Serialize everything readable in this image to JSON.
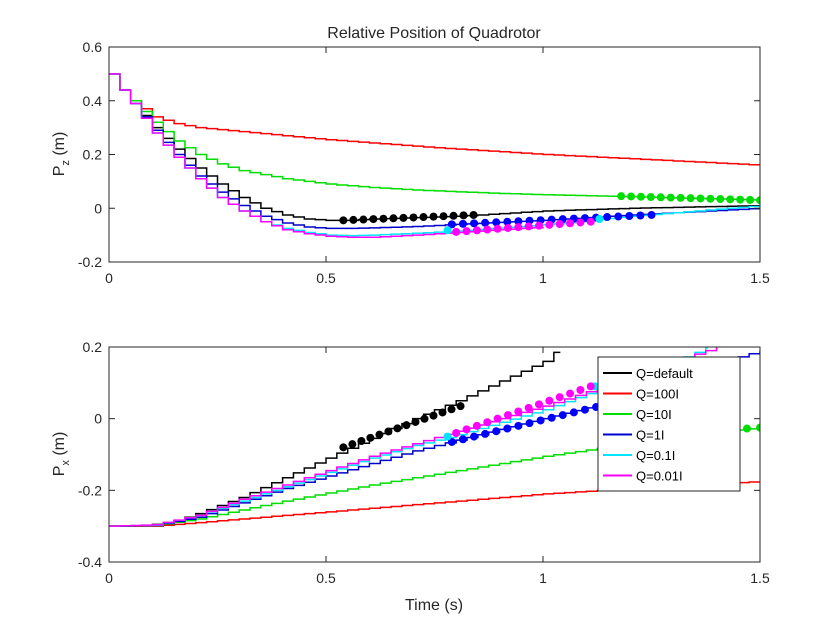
{
  "chart_data": [
    {
      "type": "line",
      "title": "Relative Position of Quadrotor",
      "ylabel_main": "P",
      "ylabel_sub": "z",
      "ylabel_unit": " (m)",
      "xlabel": "",
      "xlim": [
        0,
        1.5
      ],
      "ylim": [
        -0.2,
        0.6
      ],
      "xticks": [
        "0",
        "0.5",
        "1",
        "1.5"
      ],
      "xtick_values": [
        0,
        0.5,
        1,
        1.5
      ],
      "yticks": [
        "-0.2",
        "0",
        "0.2",
        "0.4",
        "0.6"
      ],
      "ytick_values": [
        -0.2,
        0,
        0.2,
        0.4,
        0.6
      ],
      "series": [
        {
          "color": "#000000",
          "x": [
            0,
            0.025,
            0.05,
            0.1,
            0.15,
            0.2,
            0.25,
            0.3,
            0.35,
            0.4,
            0.45,
            0.5,
            0.55,
            0.6,
            0.8,
            1.0,
            1.2,
            1.5
          ],
          "y": [
            0.5,
            0.44,
            0.39,
            0.3,
            0.22,
            0.15,
            0.09,
            0.04,
            0.0,
            -0.025,
            -0.04,
            -0.045,
            -0.045,
            -0.04,
            -0.03,
            -0.01,
            0.0,
            0.01
          ]
        },
        {
          "color": "#ff0000",
          "x": [
            0,
            0.025,
            0.05,
            0.1,
            0.15,
            0.2,
            0.3,
            0.5,
            0.75,
            1.0,
            1.25,
            1.5
          ],
          "y": [
            0.5,
            0.44,
            0.4,
            0.34,
            0.315,
            0.3,
            0.285,
            0.255,
            0.225,
            0.2,
            0.18,
            0.16
          ]
        },
        {
          "color": "#00dd00",
          "x": [
            0,
            0.025,
            0.05,
            0.1,
            0.15,
            0.2,
            0.25,
            0.3,
            0.4,
            0.5,
            0.6,
            0.7,
            0.8,
            0.9,
            1.0,
            1.2,
            1.5
          ],
          "y": [
            0.5,
            0.44,
            0.4,
            0.32,
            0.25,
            0.2,
            0.165,
            0.14,
            0.11,
            0.09,
            0.077,
            0.068,
            0.061,
            0.055,
            0.05,
            0.043,
            0.03
          ]
        },
        {
          "color": "#0000cc",
          "x": [
            0,
            0.025,
            0.05,
            0.1,
            0.15,
            0.2,
            0.25,
            0.3,
            0.35,
            0.4,
            0.45,
            0.5,
            0.55,
            0.6,
            0.7,
            0.8,
            1.0,
            1.2,
            1.5
          ],
          "y": [
            0.5,
            0.44,
            0.39,
            0.29,
            0.2,
            0.12,
            0.06,
            0.01,
            -0.03,
            -0.055,
            -0.07,
            -0.075,
            -0.075,
            -0.073,
            -0.068,
            -0.06,
            -0.045,
            -0.025,
            0.0
          ]
        },
        {
          "color": "#00e5ff",
          "x": [
            0,
            0.025,
            0.05,
            0.1,
            0.15,
            0.2,
            0.25,
            0.3,
            0.35,
            0.4,
            0.45,
            0.5,
            0.55,
            0.6,
            0.7,
            0.8,
            1.0,
            1.2,
            1.5
          ],
          "y": [
            0.5,
            0.44,
            0.39,
            0.28,
            0.19,
            0.11,
            0.04,
            -0.01,
            -0.05,
            -0.075,
            -0.09,
            -0.1,
            -0.102,
            -0.1,
            -0.093,
            -0.085,
            -0.062,
            -0.03,
            0.01
          ]
        },
        {
          "color": "#ff00ff",
          "x": [
            0,
            0.025,
            0.05,
            0.1,
            0.15,
            0.2,
            0.25,
            0.3,
            0.35,
            0.4,
            0.45,
            0.5,
            0.55,
            0.6,
            0.65,
            0.7,
            0.8,
            1.0
          ],
          "y": [
            0.5,
            0.44,
            0.39,
            0.28,
            0.19,
            0.11,
            0.04,
            -0.01,
            -0.05,
            -0.08,
            -0.095,
            -0.104,
            -0.108,
            -0.108,
            -0.104,
            -0.1,
            -0.09,
            -0.07
          ]
        }
      ],
      "markers": [
        {
          "color": "#000000",
          "x0": 0.54,
          "x1": 0.84,
          "n": 14,
          "y0": -0.045,
          "y1": -0.025
        },
        {
          "color": "#00dd00",
          "x0": 1.18,
          "x1": 1.5,
          "n": 15,
          "y0": 0.045,
          "y1": 0.03
        },
        {
          "color": "#0000ff",
          "x0": 0.79,
          "x1": 1.25,
          "n": 19,
          "y0": -0.06,
          "y1": -0.025
        },
        {
          "color": "#00e5ff",
          "x0": 0.78,
          "x1": 1.13,
          "n": 2,
          "y0": -0.082,
          "y1": -0.04
        },
        {
          "color": "#ff00ff",
          "x0": 0.8,
          "x1": 1.11,
          "n": 14,
          "y0": -0.088,
          "y1": -0.05
        }
      ]
    },
    {
      "type": "line",
      "title": "",
      "ylabel_main": "P",
      "ylabel_sub": "x",
      "ylabel_unit": " (m)",
      "xlabel": "Time (s)",
      "xlim": [
        0,
        1.5
      ],
      "ylim": [
        -0.4,
        0.2
      ],
      "xticks": [
        "0",
        "0.5",
        "1",
        "1.5"
      ],
      "xtick_values": [
        0,
        0.5,
        1,
        1.5
      ],
      "yticks": [
        "-0.4",
        "-0.2",
        "0",
        "0.2"
      ],
      "ytick_values": [
        -0.4,
        -0.2,
        0,
        0.2
      ],
      "series": [
        {
          "name": "Q=default",
          "color": "#000000",
          "x": [
            0,
            0.05,
            0.1,
            0.15,
            0.2,
            0.3,
            0.4,
            0.5,
            0.6,
            0.7,
            0.8,
            0.9,
            1.0,
            1.04
          ],
          "y": [
            -0.3,
            -0.3,
            -0.295,
            -0.285,
            -0.265,
            -0.22,
            -0.165,
            -0.11,
            -0.055,
            0.0,
            0.05,
            0.105,
            0.16,
            0.2
          ]
        },
        {
          "name": "Q=100I",
          "color": "#ff0000",
          "x": [
            0,
            0.1,
            0.2,
            0.4,
            0.6,
            0.8,
            1.0,
            1.2,
            1.5
          ],
          "y": [
            -0.3,
            -0.3,
            -0.29,
            -0.27,
            -0.25,
            -0.23,
            -0.21,
            -0.195,
            -0.175
          ]
        },
        {
          "name": "Q=10I",
          "color": "#00dd00",
          "x": [
            0,
            0.1,
            0.2,
            0.4,
            0.6,
            0.8,
            1.0,
            1.2,
            1.35,
            1.5
          ],
          "y": [
            -0.3,
            -0.298,
            -0.28,
            -0.23,
            -0.185,
            -0.145,
            -0.105,
            -0.07,
            -0.045,
            -0.025
          ]
        },
        {
          "name": "Q=1I",
          "color": "#0000cc",
          "x": [
            0,
            0.1,
            0.2,
            0.3,
            0.4,
            0.5,
            0.6,
            0.7,
            0.8,
            0.9,
            1.0,
            1.1,
            1.2,
            1.3,
            1.4,
            1.5
          ],
          "y": [
            -0.3,
            -0.298,
            -0.275,
            -0.235,
            -0.195,
            -0.16,
            -0.125,
            -0.09,
            -0.06,
            -0.03,
            0.0,
            0.03,
            0.065,
            0.11,
            0.155,
            0.19
          ]
        },
        {
          "name": "Q=0.1I",
          "color": "#00e5ff",
          "x": [
            0,
            0.1,
            0.2,
            0.3,
            0.4,
            0.5,
            0.6,
            0.7,
            0.8,
            0.9,
            1.0,
            1.1,
            1.2,
            1.3,
            1.38
          ],
          "y": [
            -0.3,
            -0.297,
            -0.27,
            -0.23,
            -0.19,
            -0.15,
            -0.11,
            -0.075,
            -0.045,
            -0.01,
            0.025,
            0.07,
            0.11,
            0.16,
            0.2
          ]
        },
        {
          "name": "Q=0.01I",
          "color": "#ff00ff",
          "x": [
            0,
            0.1,
            0.2,
            0.3,
            0.4,
            0.5,
            0.6,
            0.7,
            0.8,
            0.9,
            1.0,
            1.1,
            1.2,
            1.3,
            1.4
          ],
          "y": [
            -0.3,
            -0.296,
            -0.27,
            -0.225,
            -0.185,
            -0.145,
            -0.105,
            -0.07,
            -0.035,
            0.0,
            0.035,
            0.075,
            0.115,
            0.16,
            0.2
          ]
        }
      ],
      "markers": [
        {
          "color": "#000000",
          "x0": 0.54,
          "x1": 0.81,
          "n": 14,
          "y0": -0.08,
          "y1": 0.035
        },
        {
          "color": "#00dd00",
          "x0": 1.44,
          "x1": 1.5,
          "n": 3,
          "y0": -0.03,
          "y1": -0.025
        },
        {
          "color": "#0000ff",
          "x0": 0.79,
          "x1": 1.25,
          "n": 19,
          "y0": -0.065,
          "y1": 0.07
        },
        {
          "color": "#00e5ff",
          "x0": 0.78,
          "x1": 1.12,
          "n": 2,
          "y0": -0.05,
          "y1": 0.09
        },
        {
          "color": "#ff00ff",
          "x0": 0.8,
          "x1": 1.11,
          "n": 14,
          "y0": -0.04,
          "y1": 0.09
        }
      ],
      "legend": {
        "placement": "top-right",
        "entries": [
          {
            "label": "Q=default",
            "color": "#000000"
          },
          {
            "label": "Q=100I",
            "color": "#ff0000"
          },
          {
            "label": "Q=10I",
            "color": "#00dd00"
          },
          {
            "label": "Q=1I",
            "color": "#0000cc"
          },
          {
            "label": "Q=0.1I",
            "color": "#00e5ff"
          },
          {
            "label": "Q=0.01I",
            "color": "#ff00ff"
          }
        ]
      }
    }
  ]
}
